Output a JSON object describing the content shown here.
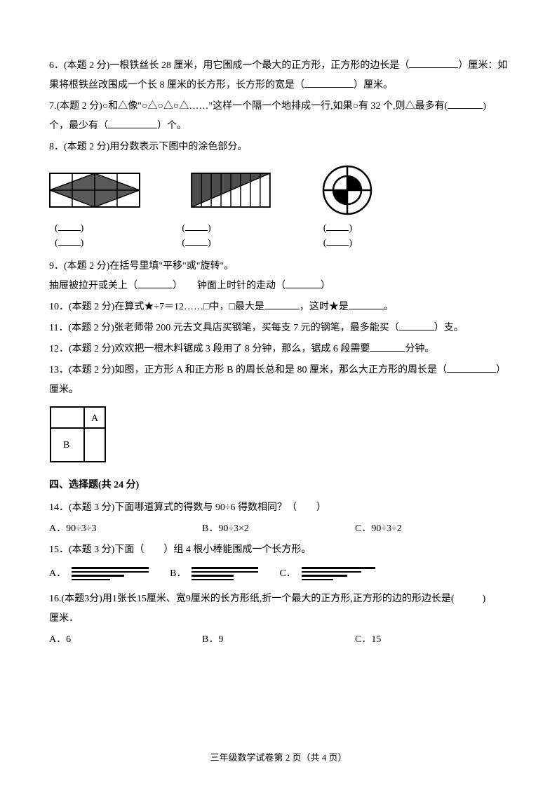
{
  "q6": {
    "text_a": "6．(本题 2 分)一根铁丝长 28 厘米，用它围成一个最大的正方形，正方形的边长是（",
    "text_b": "）厘米：如",
    "text_c": "果将根铁丝改围成一个长 8 厘米的长方形，长方形的宽是（",
    "text_d": "）厘米。"
  },
  "q7": {
    "text_a": "7.(本题 2 分)○和△像\"○△○△○△……\"这样一个隔一个地排成一行,如果○有 32 个,则△最多有(",
    "text_b": ")",
    "text_c": "个，最少有（",
    "text_d": "）个。"
  },
  "q8": {
    "text": "8．(本题 2 分)用分数表示下图中的涂色部分。",
    "frac_open": "(",
    "frac_close": ")",
    "fig1": {
      "fill": "#595959",
      "stroke": "#000"
    },
    "fig2": {
      "fill": "#4d4d4d",
      "stroke": "#000"
    },
    "fig3": {
      "fill": "#000",
      "stroke": "#000"
    }
  },
  "q9": {
    "text": "9．(本题 2 分)在括号里填\"平移\"或\"旋转\"。",
    "line_a": "抽屉被拉开或关上（",
    "line_b": "）　　钟面上时针的走动（",
    "line_c": "）"
  },
  "q10": {
    "text_a": "10．(本题 2 分)在算式★÷7＝12……□中，□最大是",
    "text_b": "，这时★是",
    "text_c": "。"
  },
  "q11": {
    "text_a": "11．(本题 2 分)张老师带 200 元去文具店买钢笔，买每支 7 元的钢笔，最多能买（",
    "text_b": "）支。"
  },
  "q12": {
    "text_a": "12．(本题 2 分)欢欢把一根木料锯成 3 段用了 8 分钟，那么，锯成 6 段需要",
    "text_b": "分钟。"
  },
  "q13": {
    "text_a": "13．(本题 2 分)如图，正方形 A 和正方形 B 的周长总和是 80 厘米，那么大正方形的周长是（",
    "text_b": "）",
    "text_c": "厘米。",
    "label_a": "A",
    "label_b": "B"
  },
  "section4": {
    "title": "四、选择题(共 24 分)"
  },
  "q14": {
    "text": "14．(本题 3 分)下面哪道算式的得数与 90÷6 得数相同？（　　）",
    "a": "A．90÷3÷3",
    "b": "B．90÷3×2",
    "c": "C．90÷3÷2"
  },
  "q15": {
    "text": "15．(本题 3 分)下面（　　）组 4 根小棒能围成一个长方形。",
    "a": "A．",
    "b": "B．",
    "c": "C．",
    "sticks_a": [
      110,
      110,
      75,
      55
    ],
    "sticks_b": [
      95,
      95,
      60,
      60
    ],
    "sticks_c": [
      105,
      85,
      65,
      45
    ]
  },
  "q16": {
    "text_a": "16.(本题3分)用1张长15厘米、宽9厘米的长方形纸,折一个最大的正方形,正方形的边的形边长是(",
    "text_b": ")",
    "text_c": "厘米．",
    "a": "A．6",
    "b": "B．9",
    "c": "C．15"
  },
  "footer": {
    "text": "三年级数学试卷第 2 页（共 4 页）"
  }
}
